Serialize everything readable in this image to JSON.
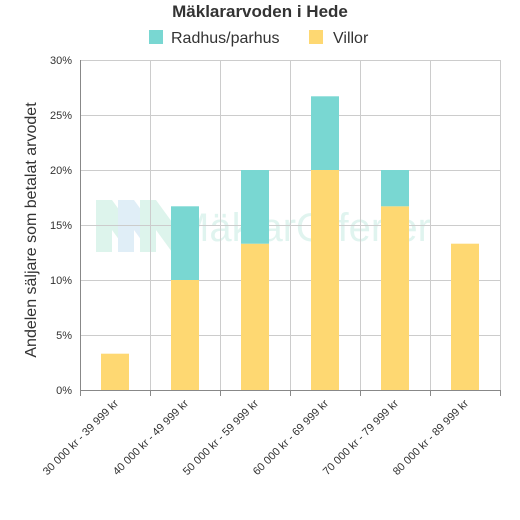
{
  "watermark": "MäklarOfferter",
  "colors": {
    "radhus": "#79d7d2",
    "villor": "#fed872",
    "grid": "#cccccc",
    "axis": "#888888"
  },
  "chart_data": {
    "type": "bar",
    "stacked": true,
    "title": "Mäklararvoden i Hede",
    "xlabel": "",
    "ylabel": "Andelen säljare som betalat arvodet",
    "ylim": [
      0,
      30
    ],
    "y_ticks": [
      "0%",
      "5%",
      "10%",
      "15%",
      "20%",
      "25%",
      "30%"
    ],
    "y_tick_values": [
      0,
      5,
      10,
      15,
      20,
      25,
      30
    ],
    "grid": true,
    "legend_position": "top",
    "categories": [
      "30 000 kr - 39 999 kr",
      "40 000 kr - 49 999 kr",
      "50 000 kr - 59 999 kr",
      "60 000 kr - 69 999 kr",
      "70 000 kr - 79 999 kr",
      "80 000 kr - 89 999 kr"
    ],
    "series": [
      {
        "name": "Villor",
        "color": "#fed872",
        "values": [
          3.3,
          10.0,
          13.3,
          20.0,
          16.7,
          13.3
        ]
      },
      {
        "name": "Radhus/parhus",
        "color": "#79d7d2",
        "values": [
          0,
          6.7,
          6.7,
          6.7,
          3.3,
          0
        ]
      }
    ],
    "legend_order": [
      "Radhus/parhus",
      "Villor"
    ]
  }
}
